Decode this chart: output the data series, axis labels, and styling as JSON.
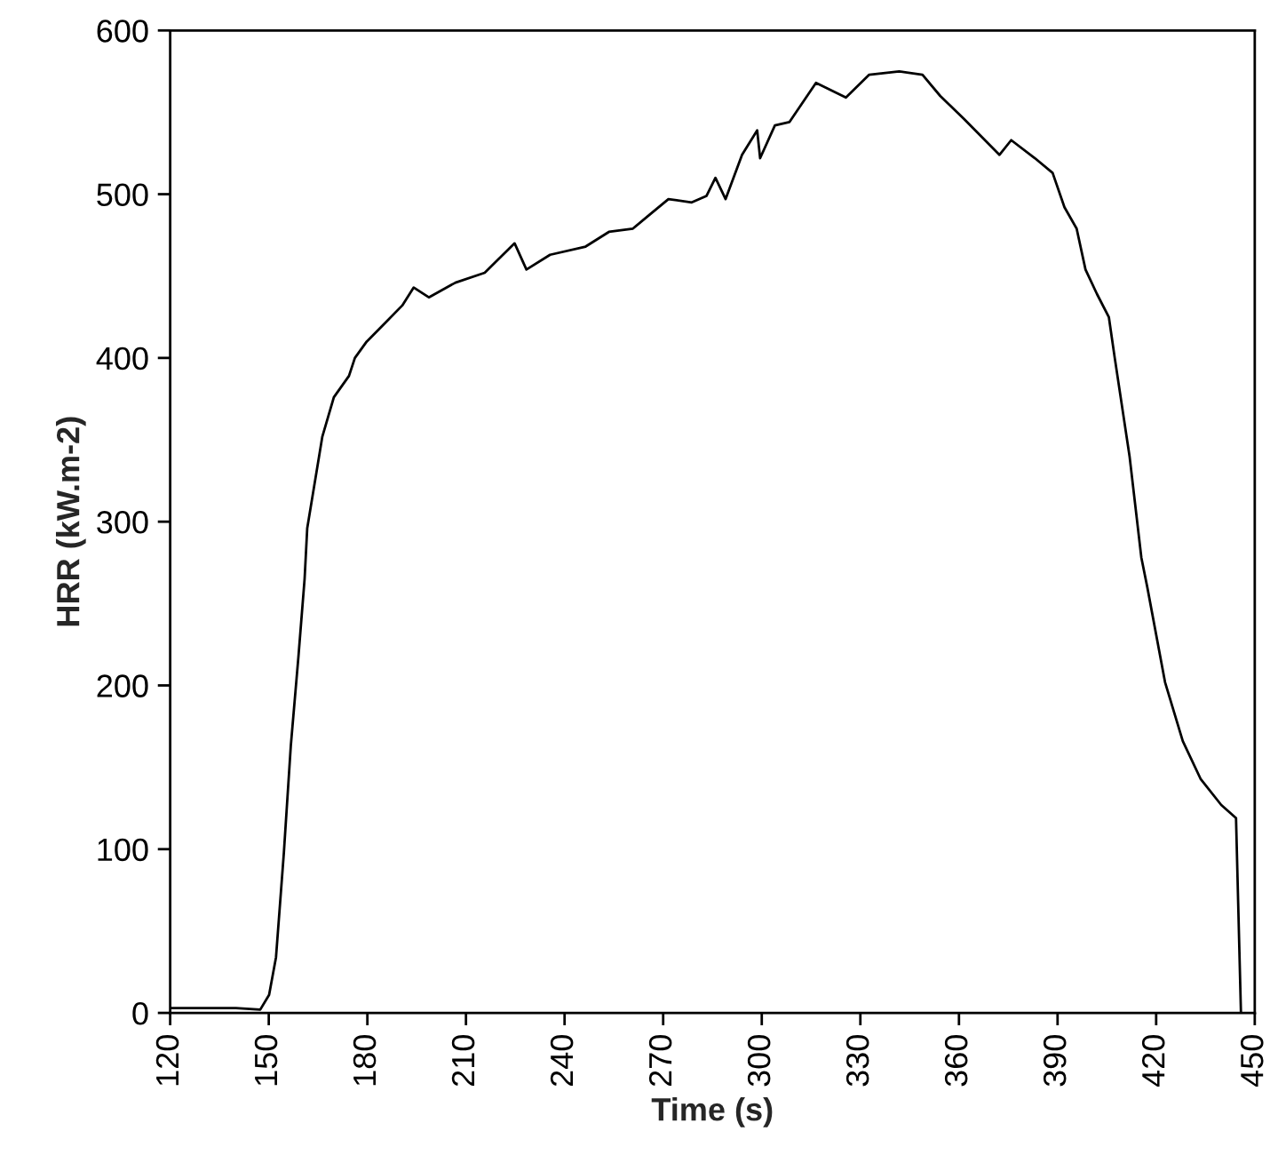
{
  "chart_data": {
    "type": "line",
    "xlabel": "Time (s)",
    "ylabel": "HRR (kW.m-2)",
    "xlim": [
      120,
      450
    ],
    "xticks": [
      120,
      150,
      180,
      210,
      240,
      270,
      300,
      330,
      360,
      390,
      420,
      450
    ],
    "ylim": [
      0,
      600
    ],
    "yticks": [
      0,
      100,
      200,
      300,
      400,
      500,
      600
    ],
    "grid": false,
    "legend": false,
    "marker": "none",
    "line_style": "solid",
    "series": [
      {
        "color": "#000000",
        "x": [
          120,
          130,
          140,
          147.4,
          150.1,
          152.2,
          154.6,
          156.7,
          159,
          160.9,
          161.7,
          166.3,
          169.8,
          174.4,
          176.2,
          179.8,
          185.2,
          190.6,
          194.1,
          198.7,
          206.8,
          215.7,
          224.8,
          228.4,
          235.6,
          246.4,
          253.5,
          260.8,
          266.2,
          271.6,
          278.7,
          283.2,
          285.9,
          289,
          294,
          298.6,
          299.5,
          304,
          308.4,
          316.5,
          325.6,
          332.7,
          341.8,
          348.9,
          354.3,
          361.5,
          372.3,
          375.9,
          383.1,
          388.5,
          392.1,
          395.8,
          398.5,
          402,
          405.6,
          407.4,
          411.9,
          415.5,
          417.3,
          422.7,
          428.1,
          433.5,
          439.8,
          444.3,
          445.8
        ],
        "values": [
          3,
          3,
          3,
          2,
          11,
          34,
          98,
          163,
          217,
          265,
          296,
          352,
          376,
          389,
          400,
          410,
          421,
          432,
          443,
          437,
          446,
          452,
          470,
          454,
          463,
          468,
          477,
          479,
          488,
          497,
          495,
          499,
          510,
          497,
          524,
          539,
          522,
          542,
          544,
          568,
          559,
          573,
          575,
          573,
          560,
          546,
          524,
          533,
          522,
          513,
          492,
          479,
          454,
          439,
          425,
          400,
          340,
          278,
          260,
          202,
          166,
          143,
          127,
          119,
          0
        ]
      }
    ]
  }
}
